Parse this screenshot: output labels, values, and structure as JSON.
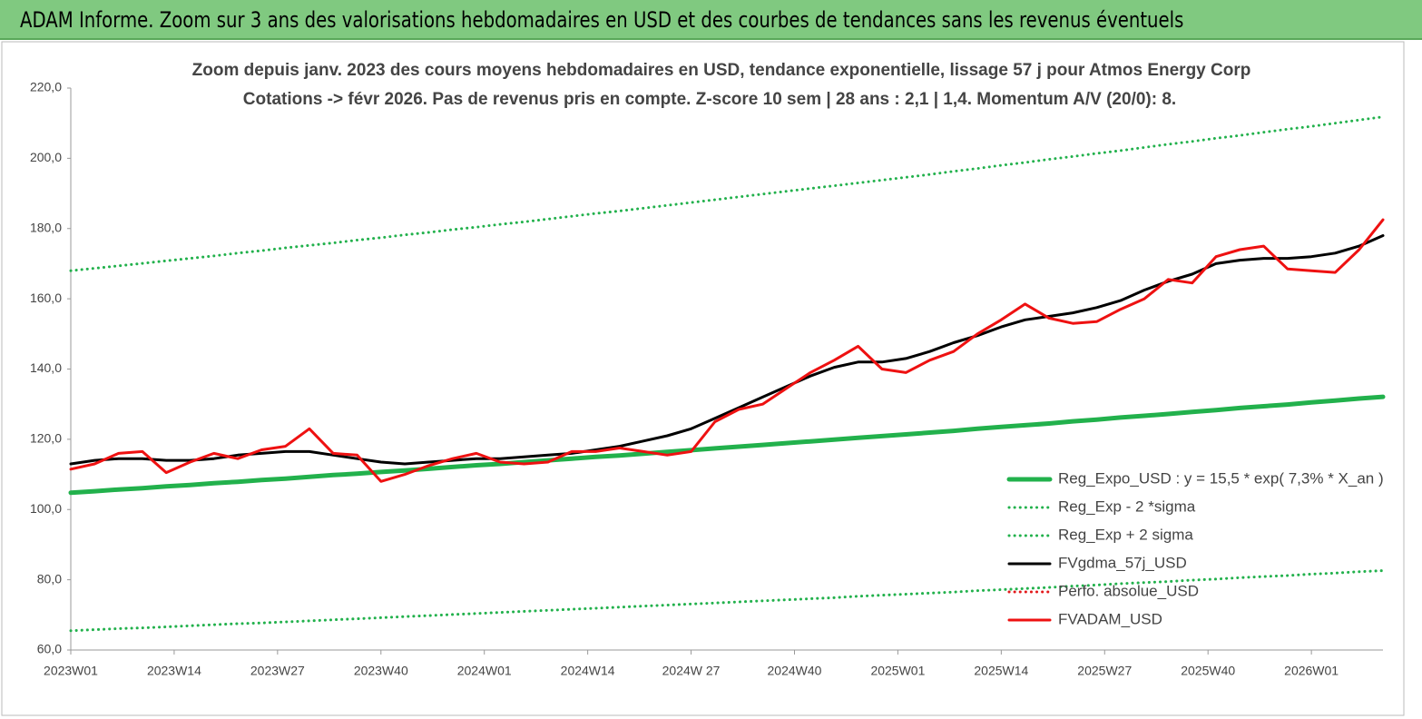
{
  "header": {
    "title": "ADAM Informe. Zoom sur 3 ans des valorisations hebdomadaires en USD et des courbes de tendances sans les revenus éventuels"
  },
  "chart_data": {
    "type": "line",
    "title": "Zoom depuis janv. 2023 des cours moyens hebdomadaires en USD, tendance exponentielle, lissage 57 j pour Atmos Energy Corp",
    "subtitle": "Cotations -> févr 2026.  Pas de revenus pris en compte. Z-score 10 sem  | 28 ans : 2,1 | 1,4. Momentum A/V (20/0): 8.",
    "x": [
      0,
      3,
      6,
      9,
      12,
      15,
      18,
      21,
      24,
      27,
      30,
      33,
      36,
      39,
      42,
      45,
      48,
      51,
      54,
      57,
      60,
      63,
      66,
      69,
      72,
      75,
      78,
      81,
      84,
      87,
      90,
      93,
      96,
      99,
      102,
      105,
      108,
      111,
      114,
      117,
      120,
      123,
      126,
      129,
      132,
      135,
      138,
      141,
      144,
      147,
      150,
      153,
      156,
      159,
      162,
      165
    ],
    "xlim": [
      0,
      165
    ],
    "xticks": [
      {
        "value": 0,
        "label": "2023W01"
      },
      {
        "value": 13,
        "label": "2023W14"
      },
      {
        "value": 26,
        "label": "2023W27"
      },
      {
        "value": 39,
        "label": "2023W40"
      },
      {
        "value": 52,
        "label": "2024W01"
      },
      {
        "value": 65,
        "label": "2024W14"
      },
      {
        "value": 78,
        "label": "2024W 27"
      },
      {
        "value": 91,
        "label": "2024W40"
      },
      {
        "value": 104,
        "label": "2025W01"
      },
      {
        "value": 117,
        "label": "2025W14"
      },
      {
        "value": 130,
        "label": "2025W27"
      },
      {
        "value": 143,
        "label": "2025W40"
      },
      {
        "value": 156,
        "label": "2026W01"
      }
    ],
    "ylim": [
      60,
      220
    ],
    "yticks": [
      {
        "value": 60,
        "label": "60,0"
      },
      {
        "value": 80,
        "label": "80,0"
      },
      {
        "value": 100,
        "label": "100,0"
      },
      {
        "value": 120,
        "label": "120,0"
      },
      {
        "value": 140,
        "label": "140,0"
      },
      {
        "value": 160,
        "label": "160,0"
      },
      {
        "value": 180,
        "label": "180,0"
      },
      {
        "value": 200,
        "label": "200,0"
      },
      {
        "value": 220,
        "label": "220,0"
      }
    ],
    "grid": false,
    "legend": "right",
    "series": [
      {
        "name": "Reg_Expo_USD : y = 15,5 * exp( 7,3% *  X_an )",
        "color": "#22b14c",
        "style": "thick",
        "values": [
          104.8,
          105.2,
          105.7,
          106.1,
          106.6,
          107.0,
          107.5,
          107.9,
          108.4,
          108.8,
          109.3,
          109.8,
          110.2,
          110.7,
          111.1,
          111.6,
          112.1,
          112.6,
          113.0,
          113.5,
          114.0,
          114.5,
          115.0,
          115.4,
          115.9,
          116.4,
          116.9,
          117.4,
          117.9,
          118.4,
          118.9,
          119.4,
          119.9,
          120.4,
          120.9,
          121.4,
          121.9,
          122.4,
          123.0,
          123.5,
          124.0,
          124.5,
          125.1,
          125.6,
          126.2,
          126.7,
          127.2,
          127.8,
          128.3,
          128.9,
          129.4,
          129.9,
          130.5,
          131.0,
          131.6,
          132.1
        ]
      },
      {
        "name": "Reg_Exp - 2 *sigma",
        "color": "#22b14c",
        "style": "dotted",
        "values": [
          65.5,
          65.8,
          66.1,
          66.3,
          66.6,
          66.9,
          67.2,
          67.5,
          67.7,
          68.0,
          68.3,
          68.6,
          68.9,
          69.2,
          69.5,
          69.8,
          70.1,
          70.4,
          70.7,
          71.0,
          71.3,
          71.6,
          71.9,
          72.2,
          72.5,
          72.8,
          73.1,
          73.4,
          73.7,
          74.0,
          74.3,
          74.6,
          74.9,
          75.3,
          75.6,
          75.9,
          76.2,
          76.5,
          76.9,
          77.2,
          77.5,
          77.8,
          78.2,
          78.5,
          78.9,
          79.2,
          79.5,
          79.9,
          80.2,
          80.6,
          80.9,
          81.2,
          81.6,
          81.9,
          82.3,
          82.6
        ]
      },
      {
        "name": "Reg_Exp + 2 sigma",
        "color": "#22b14c",
        "style": "dotted",
        "values": [
          168.0,
          168.7,
          169.4,
          170.1,
          170.8,
          171.5,
          172.2,
          173.0,
          173.7,
          174.5,
          175.2,
          175.9,
          176.7,
          177.4,
          178.2,
          178.9,
          179.7,
          180.4,
          181.2,
          181.9,
          182.7,
          183.5,
          184.3,
          185.0,
          185.8,
          186.6,
          187.4,
          188.2,
          189.0,
          189.8,
          190.6,
          191.4,
          192.2,
          193.0,
          193.8,
          194.6,
          195.4,
          196.3,
          197.1,
          198.0,
          198.8,
          199.7,
          200.5,
          201.4,
          202.2,
          203.1,
          204.0,
          204.8,
          205.7,
          206.5,
          207.4,
          208.3,
          209.1,
          210.0,
          210.9,
          211.8
        ]
      },
      {
        "name": "FVgdma_57j_USD",
        "color": "#000000",
        "style": "solid",
        "values": [
          113,
          114,
          114.5,
          114.5,
          114,
          114,
          114.5,
          115.5,
          116,
          116.5,
          116.5,
          115.5,
          114.5,
          113.5,
          113,
          113.5,
          114,
          114.5,
          114.5,
          115,
          115.5,
          116,
          117,
          118,
          119.5,
          121,
          123,
          126,
          129,
          132,
          135,
          138,
          140.5,
          142,
          142,
          143,
          145,
          147.5,
          149.5,
          152,
          154,
          155,
          156,
          157.5,
          159.5,
          162.5,
          165,
          167,
          170,
          171,
          171.5,
          171.5,
          172,
          173,
          175,
          178
        ]
      },
      {
        "name": "Perfo. absolue_USD",
        "color": "#e31a1c",
        "style": "dotted",
        "values": [
          null,
          null,
          null,
          null,
          null,
          null,
          null,
          null,
          null,
          null,
          null,
          null,
          null,
          null,
          null,
          null,
          null,
          null,
          null,
          null,
          null,
          null,
          null,
          null,
          null,
          null,
          null,
          null,
          null,
          null,
          null,
          null,
          null,
          null,
          null,
          null,
          null,
          null,
          null,
          null,
          null,
          null,
          null,
          null,
          null,
          null,
          null,
          null,
          null,
          null,
          null,
          null,
          null,
          null,
          null,
          null
        ]
      },
      {
        "name": "FVADAM_USD",
        "color": "#ee1111",
        "style": "solid",
        "values": [
          111.5,
          113,
          116,
          116.5,
          110.5,
          113.5,
          116,
          114.5,
          117,
          118,
          123,
          116,
          115.5,
          108,
          110,
          112.5,
          114.5,
          116,
          113.5,
          113,
          113.5,
          116.5,
          116.5,
          117.5,
          116.5,
          115.5,
          116.5,
          125,
          128.5,
          130,
          134.5,
          139,
          142.5,
          146.5,
          140,
          139,
          142.5,
          145,
          150,
          154,
          158.5,
          154.5,
          153,
          153.5,
          157,
          160,
          165.5,
          164.5,
          172,
          174,
          175,
          168.5,
          168,
          167.5,
          174,
          182.5
        ]
      }
    ]
  }
}
